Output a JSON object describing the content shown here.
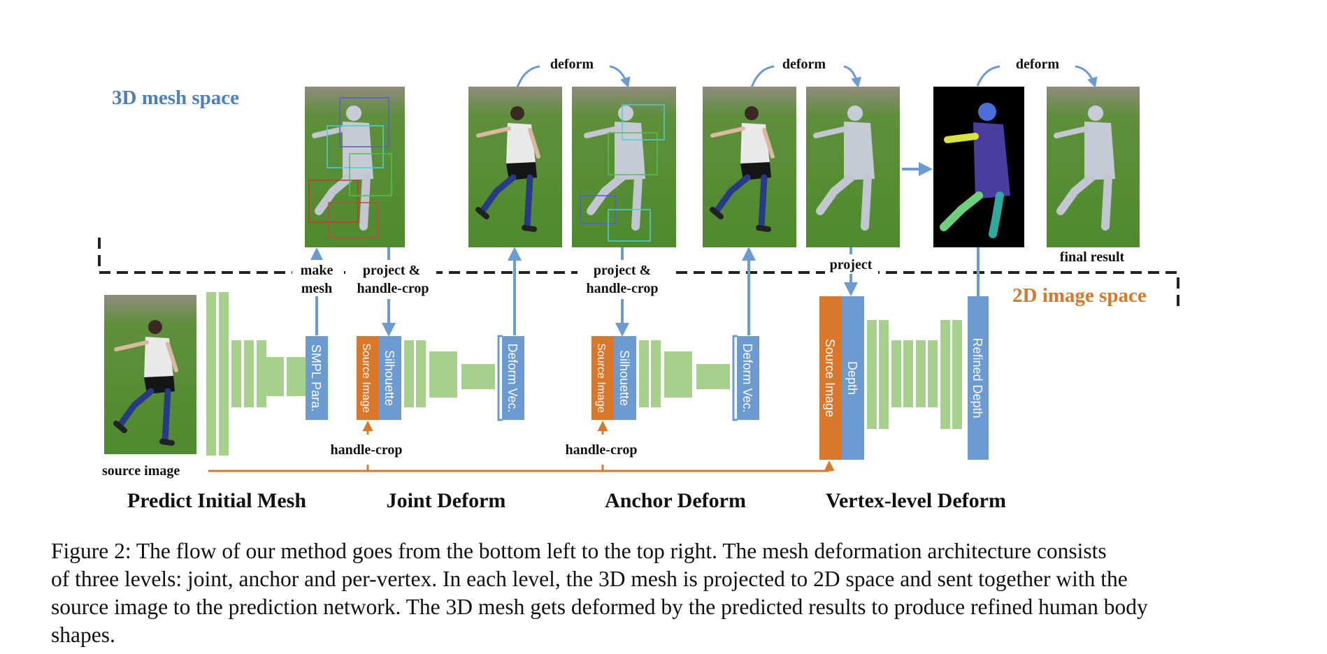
{
  "figure": {
    "space_labels": {
      "mesh_space": "3D mesh space",
      "image_space": "2D image space"
    },
    "labels": {
      "deform": "deform",
      "make_mesh_1": "make",
      "make_mesh_2": "mesh",
      "project_1": "project &",
      "project_2": "handle-crop",
      "project": "project",
      "handle_crop": "handle-crop",
      "source_image": "source image",
      "final_result": "final result"
    },
    "blocks": {
      "smpl": "SMPL Para.",
      "source_image": "Source Image",
      "silhouette": "Silhouette",
      "deform_vec": "Deform Vec.",
      "depth": "Depth",
      "refined_depth": "Refined Depth"
    },
    "stages": [
      "Predict Initial Mesh",
      "Joint Deform",
      "Anchor Deform",
      "Vertex-level Deform"
    ],
    "colors": {
      "blue": "#6b9bd1",
      "orange": "#d9782b",
      "green": "#a8d08d",
      "label_blue": "#4b7fc0",
      "label_orange": "#d9782b"
    }
  },
  "caption": {
    "lines": [
      "Figure 2: The flow of our method goes from the bottom left to the top right. The mesh deformation architecture consists",
      "of three levels: joint, anchor and per-vertex. In each level, the 3D mesh is projected to 2D space and sent together with the",
      "source image to the prediction network. The 3D mesh gets deformed by the predicted results to produce refined human body",
      "shapes."
    ]
  }
}
